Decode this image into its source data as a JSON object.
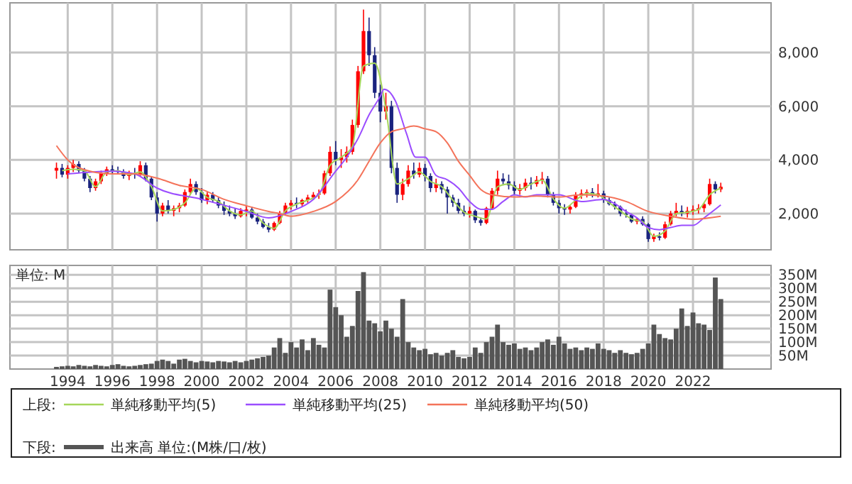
{
  "chart_data": [
    {
      "type": "candlestick",
      "legend_title": "上段:",
      "legend": "bottom",
      "grid": true,
      "tick_labels": "y",
      "colors": [
        "#ff0000",
        "#1a237e",
        "#ff0000",
        "#ff0000",
        "#1a237e",
        "#1a237e",
        "#1a237e",
        "#ff0000",
        "#ff0000",
        "#ff0000",
        "#1a237e",
        "#1a237e",
        "#1a237e",
        "#ff0000",
        "#1a237e",
        "#ff0000",
        "#1a237e",
        "#1a237e",
        "#1a237e",
        "#ff0000",
        "#1a237e",
        "#ff0000",
        "#ff0000",
        "#ff0000",
        "#ff0000",
        "#1a237e",
        "#1a237e",
        "#ff0000",
        "#1a237e",
        "#1a237e",
        "#1a237e",
        "#1a237e",
        "#1a237e",
        "#ff0000",
        "#ff0000",
        "#1a237e",
        "#1a237e",
        "#1a237e",
        "#1a237e",
        "#ff0000",
        "#ff0000",
        "#ff0000",
        "#ff0000",
        "#1a237e",
        "#ff0000",
        "#ff0000",
        "#ff0000",
        "#ff0000",
        "#ff0000",
        "#ff0000",
        "#1a237e",
        "#ff0000",
        "#ff0000",
        "#ff0000",
        "#ff0000",
        "#ff0000",
        "#1a237e",
        "#1a237e",
        "#1a237e",
        "#ff0000",
        "#1a237e",
        "#1a237e",
        "#ff0000",
        "#ff0000",
        "#1a237e",
        "#ff0000",
        "#1a237e",
        "#1a237e",
        "#ff0000",
        "#1a237e",
        "#1a237e",
        "#1a237e",
        "#1a237e",
        "#1a237e",
        "#ff0000",
        "#1a237e",
        "#1a237e",
        "#ff0000",
        "#ff0000",
        "#ff0000",
        "#1a237e",
        "#1a237e",
        "#1a237e",
        "#ff0000",
        "#ff0000",
        "#1a237e",
        "#ff0000",
        "#ff0000",
        "#1a237e",
        "#1a237e",
        "#1a237e",
        "#1a237e",
        "#ff0000",
        "#ff0000",
        "#ff0000",
        "#ff0000",
        "#1a237e",
        "#ff0000",
        "#1a237e",
        "#1a237e",
        "#1a237e",
        "#1a237e",
        "#1a237e",
        "#1a237e",
        "#ff0000",
        "#1a237e",
        "#1a237e",
        "#ff0000",
        "#1a237e",
        "#ff0000",
        "#ff0000",
        "#ff0000",
        "#1a237e",
        "#ff0000",
        "#ff0000",
        "#ff0000",
        "#ff0000",
        "#ff0000",
        "#1a237e",
        "#ff0000"
      ],
      "xlim": [
        "1991-06",
        "2025-07"
      ],
      "xticks": [
        "1994",
        "1996",
        "1998",
        "2000",
        "2002",
        "2004",
        "2006",
        "2008",
        "2010",
        "2012",
        "2014",
        "2016",
        "2018",
        "2020",
        "2022"
      ],
      "ylim": [
        650,
        9850
      ],
      "yticks": [
        {
          "value": 2000,
          "label": "2,000"
        },
        {
          "value": 4000,
          "label": "4,000"
        },
        {
          "value": 6000,
          "label": "6,000"
        },
        {
          "value": 8000,
          "label": "8,000"
        }
      ],
      "x": [
        "1993-07",
        "1993-10",
        "1994-01",
        "1994-04",
        "1994-07",
        "1994-10",
        "1995-01",
        "1995-04",
        "1995-07",
        "1995-10",
        "1996-01",
        "1996-04",
        "1996-07",
        "1996-10",
        "1997-01",
        "1997-04",
        "1997-07",
        "1997-10",
        "1998-01",
        "1998-04",
        "1998-07",
        "1998-10",
        "1999-01",
        "1999-04",
        "1999-07",
        "1999-10",
        "2000-01",
        "2000-04",
        "2000-07",
        "2000-10",
        "2001-01",
        "2001-04",
        "2001-07",
        "2001-10",
        "2002-01",
        "2002-04",
        "2002-07",
        "2002-10",
        "2003-01",
        "2003-04",
        "2003-07",
        "2003-10",
        "2004-01",
        "2004-04",
        "2004-07",
        "2004-10",
        "2005-01",
        "2005-04",
        "2005-07",
        "2005-10",
        "2006-01",
        "2006-04",
        "2006-07",
        "2006-10",
        "2007-01",
        "2007-04",
        "2007-07",
        "2007-10",
        "2008-01",
        "2008-04",
        "2008-07",
        "2008-10",
        "2009-01",
        "2009-04",
        "2009-07",
        "2009-10",
        "2010-01",
        "2010-04",
        "2010-07",
        "2010-10",
        "2011-01",
        "2011-04",
        "2011-07",
        "2011-10",
        "2012-01",
        "2012-04",
        "2012-07",
        "2012-10",
        "2013-01",
        "2013-04",
        "2013-07",
        "2013-10",
        "2014-01",
        "2014-04",
        "2014-07",
        "2014-10",
        "2015-01",
        "2015-04",
        "2015-07",
        "2015-10",
        "2016-01",
        "2016-04",
        "2016-07",
        "2016-10",
        "2017-01",
        "2017-04",
        "2017-07",
        "2017-10",
        "2018-01",
        "2018-04",
        "2018-07",
        "2018-10",
        "2019-01",
        "2019-04",
        "2019-07",
        "2019-10",
        "2020-01",
        "2020-04",
        "2020-07",
        "2020-10",
        "2021-01",
        "2021-04",
        "2021-07",
        "2021-10",
        "2022-01",
        "2022-04",
        "2022-07",
        "2022-10",
        "2023-01",
        "2023-04"
      ],
      "ohlc": [
        [
          3600,
          3900,
          3300,
          3700
        ],
        [
          3700,
          3850,
          3350,
          3450
        ],
        [
          3450,
          3800,
          3300,
          3700
        ],
        [
          3700,
          4000,
          3550,
          3850
        ],
        [
          3850,
          3950,
          3500,
          3600
        ],
        [
          3600,
          3700,
          3200,
          3300
        ],
        [
          3300,
          3400,
          2800,
          2950
        ],
        [
          2950,
          3300,
          2850,
          3200
        ],
        [
          3200,
          3600,
          3100,
          3500
        ],
        [
          3500,
          3750,
          3400,
          3650
        ],
        [
          3650,
          3800,
          3500,
          3600
        ],
        [
          3600,
          3750,
          3450,
          3550
        ],
        [
          3550,
          3650,
          3300,
          3400
        ],
        [
          3400,
          3600,
          3250,
          3500
        ],
        [
          3500,
          3700,
          3300,
          3450
        ],
        [
          3450,
          3950,
          3400,
          3800
        ],
        [
          3800,
          3900,
          3200,
          3300
        ],
        [
          3300,
          3400,
          2500,
          2600
        ],
        [
          2600,
          2800,
          1700,
          2000
        ],
        [
          2000,
          2400,
          1900,
          2300
        ],
        [
          2300,
          2500,
          2000,
          2100
        ],
        [
          2100,
          2300,
          1900,
          2200
        ],
        [
          2200,
          2400,
          2050,
          2300
        ],
        [
          2300,
          2900,
          2250,
          2800
        ],
        [
          2800,
          3300,
          2700,
          3100
        ],
        [
          3100,
          3200,
          2700,
          2800
        ],
        [
          2800,
          2950,
          2400,
          2500
        ],
        [
          2500,
          2800,
          2350,
          2700
        ],
        [
          2700,
          2800,
          2400,
          2500
        ],
        [
          2500,
          2600,
          2200,
          2300
        ],
        [
          2300,
          2450,
          1950,
          2100
        ],
        [
          2100,
          2300,
          1900,
          2000
        ],
        [
          2000,
          2200,
          1800,
          1900
        ],
        [
          1900,
          2200,
          1850,
          2100
        ],
        [
          2100,
          2300,
          1900,
          2150
        ],
        [
          2150,
          2250,
          1800,
          1850
        ],
        [
          1850,
          2000,
          1600,
          1700
        ],
        [
          1700,
          1800,
          1450,
          1500
        ],
        [
          1500,
          1650,
          1300,
          1400
        ],
        [
          1400,
          1700,
          1350,
          1650
        ],
        [
          1650,
          2100,
          1600,
          2000
        ],
        [
          2000,
          2400,
          1950,
          2300
        ],
        [
          2300,
          2500,
          2150,
          2400
        ],
        [
          2400,
          2600,
          2200,
          2350
        ],
        [
          2350,
          2550,
          2250,
          2500
        ],
        [
          2500,
          2700,
          2400,
          2600
        ],
        [
          2600,
          2800,
          2500,
          2700
        ],
        [
          2700,
          2900,
          2550,
          2750
        ],
        [
          2750,
          3600,
          2700,
          3500
        ],
        [
          3500,
          4500,
          3400,
          4300
        ],
        [
          4300,
          4700,
          3800,
          4000
        ],
        [
          4000,
          4400,
          3700,
          4100
        ],
        [
          4100,
          4500,
          3900,
          4300
        ],
        [
          4300,
          5500,
          4200,
          5300
        ],
        [
          5300,
          7500,
          5200,
          7300
        ],
        [
          7300,
          9600,
          7200,
          8800
        ],
        [
          8800,
          9300,
          7500,
          7900
        ],
        [
          7900,
          8200,
          6300,
          6500
        ],
        [
          6500,
          6800,
          5400,
          5800
        ],
        [
          5800,
          6500,
          5500,
          6000
        ],
        [
          6000,
          6200,
          3500,
          3700
        ],
        [
          3700,
          3900,
          2400,
          2700
        ],
        [
          2700,
          3300,
          2500,
          3100
        ],
        [
          3100,
          3800,
          3000,
          3600
        ],
        [
          3600,
          3900,
          3300,
          3450
        ],
        [
          3450,
          3900,
          3350,
          3700
        ],
        [
          3700,
          3850,
          3200,
          3400
        ],
        [
          3400,
          3500,
          2800,
          2950
        ],
        [
          2950,
          3300,
          2800,
          3100
        ],
        [
          3100,
          3200,
          2750,
          2900
        ],
        [
          2900,
          3000,
          2000,
          2600
        ],
        [
          2600,
          2700,
          2250,
          2400
        ],
        [
          2400,
          2550,
          2000,
          2100
        ],
        [
          2100,
          2300,
          1900,
          2000
        ],
        [
          2000,
          2250,
          1850,
          2100
        ],
        [
          2100,
          2150,
          1650,
          1750
        ],
        [
          1750,
          1850,
          1550,
          1650
        ],
        [
          1650,
          2250,
          1600,
          2200
        ],
        [
          2200,
          2950,
          2150,
          2850
        ],
        [
          2850,
          3600,
          2700,
          3300
        ],
        [
          3300,
          3500,
          3050,
          3200
        ],
        [
          3200,
          3450,
          2900,
          3050
        ],
        [
          3050,
          3200,
          2700,
          2850
        ],
        [
          2850,
          3100,
          2700,
          2950
        ],
        [
          2950,
          3300,
          2850,
          3150
        ],
        [
          3150,
          3350,
          2900,
          3100
        ],
        [
          3100,
          3400,
          3000,
          3250
        ],
        [
          3250,
          3550,
          3100,
          3300
        ],
        [
          3300,
          3400,
          2600,
          2700
        ],
        [
          2700,
          2800,
          2300,
          2400
        ],
        [
          2400,
          2500,
          2000,
          2200
        ],
        [
          2200,
          2350,
          1950,
          2150
        ],
        [
          2150,
          2300,
          2000,
          2250
        ],
        [
          2250,
          2800,
          2200,
          2700
        ],
        [
          2700,
          2900,
          2550,
          2750
        ],
        [
          2750,
          2900,
          2600,
          2800
        ],
        [
          2800,
          2950,
          2600,
          2700
        ],
        [
          2700,
          3100,
          2600,
          2750
        ],
        [
          2750,
          2850,
          2400,
          2500
        ],
        [
          2500,
          2600,
          2300,
          2350
        ],
        [
          2350,
          2450,
          2150,
          2250
        ],
        [
          2250,
          2300,
          1900,
          2000
        ],
        [
          2000,
          2150,
          1850,
          1950
        ],
        [
          1950,
          2000,
          1650,
          1700
        ],
        [
          1700,
          1850,
          1600,
          1800
        ],
        [
          1800,
          1900,
          1550,
          1600
        ],
        [
          1600,
          1650,
          950,
          1050
        ],
        [
          1050,
          1250,
          950,
          1150
        ],
        [
          1150,
          1300,
          1000,
          1100
        ],
        [
          1100,
          1700,
          1050,
          1600
        ],
        [
          1600,
          2100,
          1550,
          2000
        ],
        [
          2000,
          2400,
          1900,
          2100
        ],
        [
          2100,
          2300,
          1900,
          2000
        ],
        [
          2000,
          2250,
          1850,
          2100
        ],
        [
          2100,
          2300,
          1950,
          2150
        ],
        [
          2150,
          2350,
          2000,
          2200
        ],
        [
          2200,
          2400,
          2050,
          2350
        ],
        [
          2350,
          3300,
          2300,
          3100
        ],
        [
          3100,
          3200,
          2750,
          2900
        ],
        [
          2900,
          3150,
          2800,
          3000
        ]
      ],
      "series": [
        {
          "type": "line",
          "name": "単純移動平均(5)",
          "color": "#a5d65a",
          "x": [
            "1993-10",
            "1994-04",
            "1994-10",
            "1995-04",
            "1995-10",
            "1996-04",
            "1996-10",
            "1997-04",
            "1997-10",
            "1998-04",
            "1998-10",
            "1999-04",
            "1999-10",
            "2000-04",
            "2000-10",
            "2001-04",
            "2001-10",
            "2002-04",
            "2002-10",
            "2003-04",
            "2003-10",
            "2004-04",
            "2004-10",
            "2005-04",
            "2005-10",
            "2006-04",
            "2006-10",
            "2007-04",
            "2007-10",
            "2008-04",
            "2008-10",
            "2009-04",
            "2009-10",
            "2010-04",
            "2010-10",
            "2011-04",
            "2011-10",
            "2012-04",
            "2012-10",
            "2013-04",
            "2013-10",
            "2014-04",
            "2014-10",
            "2015-04",
            "2015-10",
            "2016-04",
            "2016-10",
            "2017-04",
            "2017-10",
            "2018-04",
            "2018-10",
            "2019-04",
            "2019-10",
            "2020-04",
            "2020-10",
            "2021-04",
            "2021-10",
            "2022-04",
            "2022-10",
            "2023-04"
          ],
          "values": [
            3600,
            3650,
            3600,
            3000,
            3550,
            3600,
            3450,
            3550,
            3000,
            2100,
            2150,
            2400,
            2950,
            2600,
            2450,
            2100,
            1950,
            2100,
            1650,
            1450,
            2100,
            2350,
            2500,
            2700,
            3800,
            4100,
            4500,
            7500,
            7600,
            5900,
            3100,
            3300,
            3550,
            3200,
            3000,
            2500,
            2050,
            1900,
            1800,
            3000,
            3100,
            2900,
            3100,
            3250,
            2550,
            2200,
            2500,
            2750,
            2700,
            2400,
            2100,
            1800,
            1700,
            1150,
            1350,
            2000,
            2050,
            2150,
            2700,
            2950
          ]
        },
        {
          "type": "line",
          "name": "単純移動平均(25)",
          "color": "#9b4dff",
          "x": [
            "1994",
            "1996",
            "1997",
            "1998",
            "2000",
            "2002",
            "2003",
            "2004",
            "2005",
            "2006",
            "2006-07",
            "2007",
            "2007-07",
            "2008",
            "2008-03",
            "2008-09",
            "2009-03",
            "2009-08",
            "2010",
            "2010-07",
            "2011",
            "2011-07",
            "2012",
            "2012-07",
            "2013",
            "2013-07",
            "2014",
            "2014-07",
            "2015",
            "2016",
            "2017",
            "2018",
            "2018-07",
            "2019",
            "2019-07",
            "2020",
            "2020-07",
            "2021",
            "2021-07",
            "2022",
            "2022-07",
            "2023-04"
          ],
          "values": [
            3480,
            3580,
            3480,
            2950,
            2530,
            2080,
            1840,
            2080,
            2530,
            3580,
            4100,
            4790,
            5680,
            6370,
            6630,
            6210,
            5000,
            4100,
            4100,
            3420,
            3260,
            2950,
            2450,
            2160,
            2160,
            2450,
            2700,
            2620,
            2700,
            2700,
            2450,
            2530,
            2370,
            2080,
            1840,
            1480,
            1400,
            1480,
            1560,
            1560,
            1840,
            2320
          ]
        },
        {
          "type": "line",
          "name": "単純移動平均(50)",
          "color": "#f4735a",
          "x": [
            "1993-07",
            "1994",
            "1995",
            "1996",
            "1997",
            "1998",
            "1999",
            "2000",
            "2001",
            "2002",
            "2003",
            "2003-07",
            "2004",
            "2005",
            "2006",
            "2007",
            "2007-07",
            "2008",
            "2008-07",
            "2009",
            "2009-07",
            "2010",
            "2010-07",
            "2011",
            "2011-07",
            "2012",
            "2012-07",
            "2013",
            "2014",
            "2015",
            "2016",
            "2017",
            "2018",
            "2019",
            "2020",
            "2021",
            "2022",
            "2023-04"
          ],
          "values": [
            4530,
            4000,
            3580,
            3480,
            3480,
            3320,
            3050,
            2900,
            2530,
            2290,
            2080,
            2000,
            1900,
            2080,
            2450,
            3260,
            3950,
            4630,
            5050,
            5160,
            5260,
            5160,
            5050,
            4630,
            3950,
            3420,
            2900,
            2700,
            2620,
            2650,
            2620,
            2700,
            2650,
            2450,
            2080,
            1900,
            1790,
            1900
          ]
        }
      ]
    },
    {
      "type": "bar",
      "legend_title": "下段:",
      "legend": "bottom",
      "grid": true,
      "annotations": [
        "単位: M"
      ],
      "xlim": [
        "1991-06",
        "2025-07"
      ],
      "xticks": [
        "1994",
        "1996",
        "1998",
        "2000",
        "2002",
        "2004",
        "2006",
        "2008",
        "2010",
        "2012",
        "2014",
        "2016",
        "2018",
        "2020",
        "2022"
      ],
      "ylim": [
        0,
        385
      ],
      "yticks": [
        {
          "value": 50,
          "label": "50M"
        },
        {
          "value": 100,
          "label": "100M"
        },
        {
          "value": 150,
          "label": "150M"
        },
        {
          "value": 200,
          "label": "200M"
        },
        {
          "value": 250,
          "label": "250M"
        },
        {
          "value": 300,
          "label": "300M"
        },
        {
          "value": 350,
          "label": "350M"
        }
      ],
      "x": [
        "1993-07",
        "1993-10",
        "1994-01",
        "1994-04",
        "1994-07",
        "1994-10",
        "1995-01",
        "1995-04",
        "1995-07",
        "1995-10",
        "1996-01",
        "1996-04",
        "1996-07",
        "1996-10",
        "1997-01",
        "1997-04",
        "1997-07",
        "1997-10",
        "1998-01",
        "1998-04",
        "1998-07",
        "1998-10",
        "1999-01",
        "1999-04",
        "1999-07",
        "1999-10",
        "2000-01",
        "2000-04",
        "2000-07",
        "2000-10",
        "2001-01",
        "2001-04",
        "2001-07",
        "2001-10",
        "2002-01",
        "2002-04",
        "2002-07",
        "2002-10",
        "2003-01",
        "2003-04",
        "2003-07",
        "2003-10",
        "2004-01",
        "2004-04",
        "2004-07",
        "2004-10",
        "2005-01",
        "2005-04",
        "2005-07",
        "2005-10",
        "2006-01",
        "2006-04",
        "2006-07",
        "2006-10",
        "2007-01",
        "2007-04",
        "2007-07",
        "2007-10",
        "2008-01",
        "2008-04",
        "2008-07",
        "2008-10",
        "2009-01",
        "2009-04",
        "2009-07",
        "2009-10",
        "2010-01",
        "2010-04",
        "2010-07",
        "2010-10",
        "2011-01",
        "2011-04",
        "2011-07",
        "2011-10",
        "2012-01",
        "2012-04",
        "2012-07",
        "2012-10",
        "2013-01",
        "2013-04",
        "2013-07",
        "2013-10",
        "2014-01",
        "2014-04",
        "2014-07",
        "2014-10",
        "2015-01",
        "2015-04",
        "2015-07",
        "2015-10",
        "2016-01",
        "2016-04",
        "2016-07",
        "2016-10",
        "2017-01",
        "2017-04",
        "2017-07",
        "2017-10",
        "2018-01",
        "2018-04",
        "2018-07",
        "2018-10",
        "2019-01",
        "2019-04",
        "2019-07",
        "2019-10",
        "2020-01",
        "2020-04",
        "2020-07",
        "2020-10",
        "2021-01",
        "2021-04",
        "2021-07",
        "2021-10",
        "2022-01",
        "2022-04",
        "2022-07",
        "2022-10",
        "2023-01",
        "2023-04"
      ],
      "series": [
        {
          "name": "出来高 単位:(M株/口/枚)",
          "color": "#555555",
          "values": [
            8,
            10,
            12,
            10,
            15,
            12,
            10,
            15,
            12,
            10,
            15,
            18,
            12,
            10,
            12,
            15,
            18,
            20,
            30,
            35,
            30,
            20,
            35,
            38,
            30,
            25,
            30,
            28,
            25,
            30,
            28,
            25,
            30,
            25,
            30,
            35,
            40,
            45,
            50,
            80,
            115,
            60,
            100,
            80,
            110,
            70,
            115,
            90,
            80,
            295,
            230,
            200,
            120,
            160,
            290,
            360,
            180,
            170,
            140,
            180,
            150,
            120,
            260,
            100,
            80,
            70,
            75,
            55,
            60,
            50,
            60,
            70,
            45,
            40,
            45,
            80,
            60,
            100,
            120,
            165,
            100,
            90,
            95,
            75,
            80,
            70,
            80,
            100,
            110,
            90,
            120,
            95,
            75,
            80,
            70,
            80,
            75,
            95,
            75,
            70,
            60,
            70,
            60,
            55,
            60,
            75,
            95,
            165,
            130,
            115,
            110,
            150,
            225,
            160,
            210,
            170,
            165,
            145,
            340,
            260
          ]
        }
      ]
    }
  ]
}
